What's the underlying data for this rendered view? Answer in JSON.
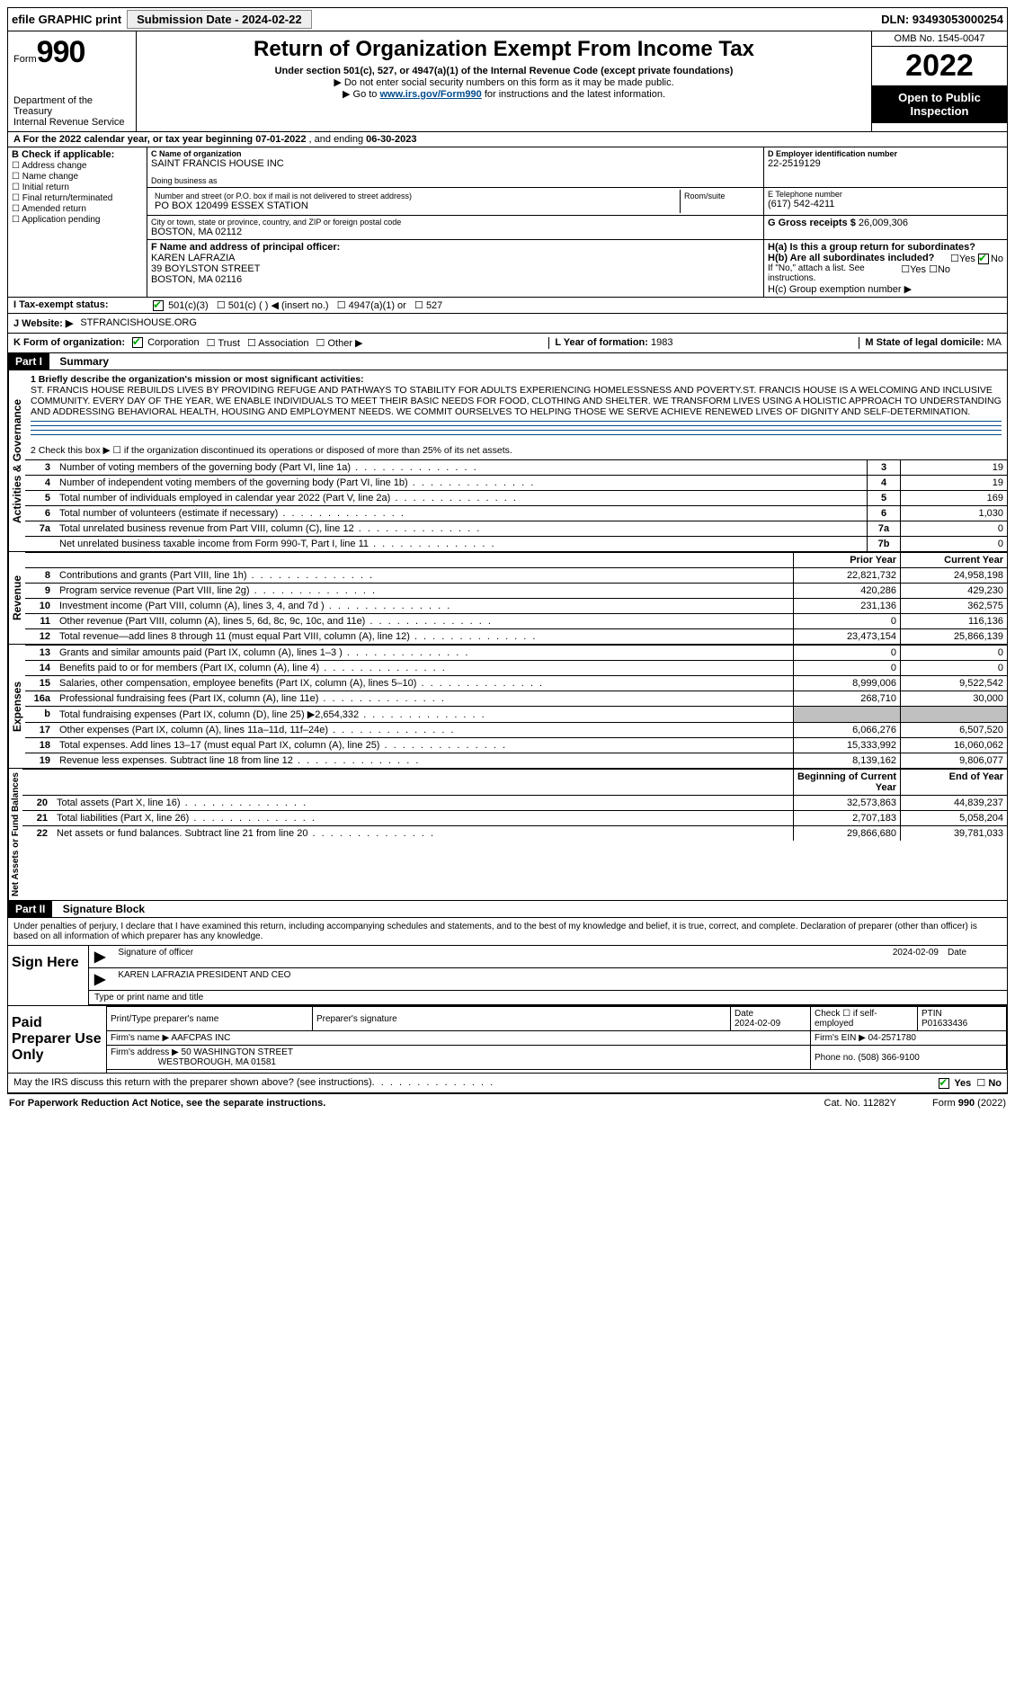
{
  "topbar": {
    "efile": "efile GRAPHIC print",
    "submission_label": "Submission Date - 2024-02-22",
    "dln": "DLN: 93493053000254"
  },
  "header": {
    "form_word": "Form",
    "form_no": "990",
    "dept": "Department of the Treasury",
    "irs": "Internal Revenue Service",
    "title": "Return of Organization Exempt From Income Tax",
    "sub1": "Under section 501(c), 527, or 4947(a)(1) of the Internal Revenue Code (except private foundations)",
    "sub2": "▶ Do not enter social security numbers on this form as it may be made public.",
    "sub3_pre": "▶ Go to ",
    "sub3_link": "www.irs.gov/Form990",
    "sub3_post": " for instructions and the latest information.",
    "omb": "OMB No. 1545-0047",
    "year": "2022",
    "open": "Open to Public Inspection"
  },
  "row_a": {
    "text_a": "A For the 2022 calendar year, or tax year beginning ",
    "begin": "07-01-2022",
    "mid": " , and ending ",
    "end": "06-30-2023"
  },
  "b": {
    "label": "B Check if applicable:",
    "opts": [
      "Address change",
      "Name change",
      "Initial return",
      "Final return/terminated",
      "Amended return",
      "Application pending"
    ]
  },
  "c": {
    "label": "C Name of organization",
    "name": "SAINT FRANCIS HOUSE INC",
    "dba_label": "Doing business as",
    "street_label": "Number and street (or P.O. box if mail is not delivered to street address)",
    "street": "PO BOX 120499 ESSEX STATION",
    "room_label": "Room/suite",
    "city_label": "City or town, state or province, country, and ZIP or foreign postal code",
    "city": "BOSTON, MA  02112"
  },
  "d": {
    "label": "D Employer identification number",
    "val": "22-2519129"
  },
  "e": {
    "label": "E Telephone number",
    "val": "(617) 542-4211"
  },
  "g": {
    "label": "G Gross receipts $",
    "val": "26,009,306"
  },
  "f": {
    "label": "F  Name and address of principal officer:",
    "name": "KAREN LAFRAZIA",
    "addr1": "39 BOYLSTON STREET",
    "addr2": "BOSTON, MA  02116"
  },
  "h": {
    "a_label": "H(a)  Is this a group return for subordinates?",
    "a_yes": "Yes",
    "a_no": "No",
    "b_label": "H(b)  Are all subordinates included?",
    "b_note": "If \"No,\" attach a list. See instructions.",
    "c_label": "H(c)  Group exemption number ▶"
  },
  "i": {
    "label": "I  Tax-exempt status:",
    "o1": "501(c)(3)",
    "o2": "501(c) (   ) ◀ (insert no.)",
    "o3": "4947(a)(1) or",
    "o4": "527"
  },
  "j": {
    "label": "J  Website: ▶",
    "val": "STFRANCISHOUSE.ORG"
  },
  "k": {
    "label": "K Form of organization:",
    "o1": "Corporation",
    "o2": "Trust",
    "o3": "Association",
    "o4": "Other ▶"
  },
  "l": {
    "label": "L Year of formation:",
    "val": "1983"
  },
  "m": {
    "label": "M State of legal domicile:",
    "val": "MA"
  },
  "part1": {
    "hdr": "Part I",
    "title": "Summary",
    "vtab_ag": "Activities & Governance",
    "vtab_rev": "Revenue",
    "vtab_exp": "Expenses",
    "vtab_na": "Net Assets or Fund Balances",
    "l1_label": "1   Briefly describe the organization's mission or most significant activities:",
    "mission": "ST. FRANCIS HOUSE REBUILDS LIVES BY PROVIDING REFUGE AND PATHWAYS TO STABILITY FOR ADULTS EXPERIENCING HOMELESSNESS AND POVERTY.ST. FRANCIS HOUSE IS A WELCOMING AND INCLUSIVE COMMUNITY. EVERY DAY OF THE YEAR, WE ENABLE INDIVIDUALS TO MEET THEIR BASIC NEEDS FOR FOOD, CLOTHING AND SHELTER. WE TRANSFORM LIVES USING A HOLISTIC APPROACH TO UNDERSTANDING AND ADDRESSING BEHAVIORAL HEALTH, HOUSING AND EMPLOYMENT NEEDS. WE COMMIT OURSELVES TO HELPING THOSE WE SERVE ACHIEVE RENEWED LIVES OF DIGNITY AND SELF-DETERMINATION.",
    "l2": "2   Check this box ▶ ☐ if the organization discontinued its operations or disposed of more than 25% of its net assets.",
    "rows_ag": [
      {
        "n": "3",
        "t": "Number of voting members of the governing body (Part VI, line 1a)",
        "r": "3",
        "v": "19"
      },
      {
        "n": "4",
        "t": "Number of independent voting members of the governing body (Part VI, line 1b)",
        "r": "4",
        "v": "19"
      },
      {
        "n": "5",
        "t": "Total number of individuals employed in calendar year 2022 (Part V, line 2a)",
        "r": "5",
        "v": "169"
      },
      {
        "n": "6",
        "t": "Total number of volunteers (estimate if necessary)",
        "r": "6",
        "v": "1,030"
      },
      {
        "n": "7a",
        "t": "Total unrelated business revenue from Part VIII, column (C), line 12",
        "r": "7a",
        "v": "0"
      },
      {
        "n": "",
        "t": "Net unrelated business taxable income from Form 990-T, Part I, line 11",
        "r": "7b",
        "v": "0"
      }
    ],
    "col_prior": "Prior Year",
    "col_current": "Current Year",
    "rows_rev": [
      {
        "n": "8",
        "t": "Contributions and grants (Part VIII, line 1h)",
        "p": "22,821,732",
        "c": "24,958,198"
      },
      {
        "n": "9",
        "t": "Program service revenue (Part VIII, line 2g)",
        "p": "420,286",
        "c": "429,230"
      },
      {
        "n": "10",
        "t": "Investment income (Part VIII, column (A), lines 3, 4, and 7d )",
        "p": "231,136",
        "c": "362,575"
      },
      {
        "n": "11",
        "t": "Other revenue (Part VIII, column (A), lines 5, 6d, 8c, 9c, 10c, and 11e)",
        "p": "0",
        "c": "116,136"
      },
      {
        "n": "12",
        "t": "Total revenue—add lines 8 through 11 (must equal Part VIII, column (A), line 12)",
        "p": "23,473,154",
        "c": "25,866,139"
      }
    ],
    "rows_exp": [
      {
        "n": "13",
        "t": "Grants and similar amounts paid (Part IX, column (A), lines 1–3 )",
        "p": "0",
        "c": "0"
      },
      {
        "n": "14",
        "t": "Benefits paid to or for members (Part IX, column (A), line 4)",
        "p": "0",
        "c": "0"
      },
      {
        "n": "15",
        "t": "Salaries, other compensation, employee benefits (Part IX, column (A), lines 5–10)",
        "p": "8,999,006",
        "c": "9,522,542"
      },
      {
        "n": "16a",
        "t": "Professional fundraising fees (Part IX, column (A), line 11e)",
        "p": "268,710",
        "c": "30,000"
      },
      {
        "n": "b",
        "t": "Total fundraising expenses (Part IX, column (D), line 25) ▶2,654,332",
        "p": "",
        "c": "",
        "gray": true
      },
      {
        "n": "17",
        "t": "Other expenses (Part IX, column (A), lines 11a–11d, 11f–24e)",
        "p": "6,066,276",
        "c": "6,507,520"
      },
      {
        "n": "18",
        "t": "Total expenses. Add lines 13–17 (must equal Part IX, column (A), line 25)",
        "p": "15,333,992",
        "c": "16,060,062"
      },
      {
        "n": "19",
        "t": "Revenue less expenses. Subtract line 18 from line 12",
        "p": "8,139,162",
        "c": "9,806,077"
      }
    ],
    "col_begin": "Beginning of Current Year",
    "col_end": "End of Year",
    "rows_na": [
      {
        "n": "20",
        "t": "Total assets (Part X, line 16)",
        "p": "32,573,863",
        "c": "44,839,237"
      },
      {
        "n": "21",
        "t": "Total liabilities (Part X, line 26)",
        "p": "2,707,183",
        "c": "5,058,204"
      },
      {
        "n": "22",
        "t": "Net assets or fund balances. Subtract line 21 from line 20",
        "p": "29,866,680",
        "c": "39,781,033"
      }
    ]
  },
  "part2": {
    "hdr": "Part II",
    "title": "Signature Block",
    "perjury": "Under penalties of perjury, I declare that I have examined this return, including accompanying schedules and statements, and to the best of my knowledge and belief, it is true, correct, and complete. Declaration of preparer (other than officer) is based on all information of which preparer has any knowledge.",
    "sign_here": "Sign Here",
    "sig_officer": "Signature of officer",
    "sig_date": "2024-02-09",
    "date_lbl": "Date",
    "officer_name": "KAREN LAFRAZIA  PRESIDENT AND CEO",
    "type_name": "Type or print name and title",
    "paid_prep": "Paid Preparer Use Only",
    "prep_hdrs": [
      "Print/Type preparer's name",
      "Preparer's signature",
      "Date",
      "",
      "PTIN"
    ],
    "prep_date": "2024-02-09",
    "prep_check": "Check ☐ if self-employed",
    "ptin": "P01633436",
    "firm_name_lbl": "Firm's name    ▶",
    "firm_name": "AAFCPAS INC",
    "firm_ein_lbl": "Firm's EIN ▶",
    "firm_ein": "04-2571780",
    "firm_addr_lbl": "Firm's address ▶",
    "firm_addr": "50 WASHINGTON STREET",
    "firm_city": "WESTBOROUGH, MA  01581",
    "phone_lbl": "Phone no.",
    "phone": "(508) 366-9100",
    "discuss": "May the IRS discuss this return with the preparer shown above? (see instructions)",
    "yes": "Yes",
    "no": "No"
  },
  "footer": {
    "pra": "For Paperwork Reduction Act Notice, see the separate instructions.",
    "cat": "Cat. No. 11282Y",
    "form": "Form 990 (2022)"
  }
}
